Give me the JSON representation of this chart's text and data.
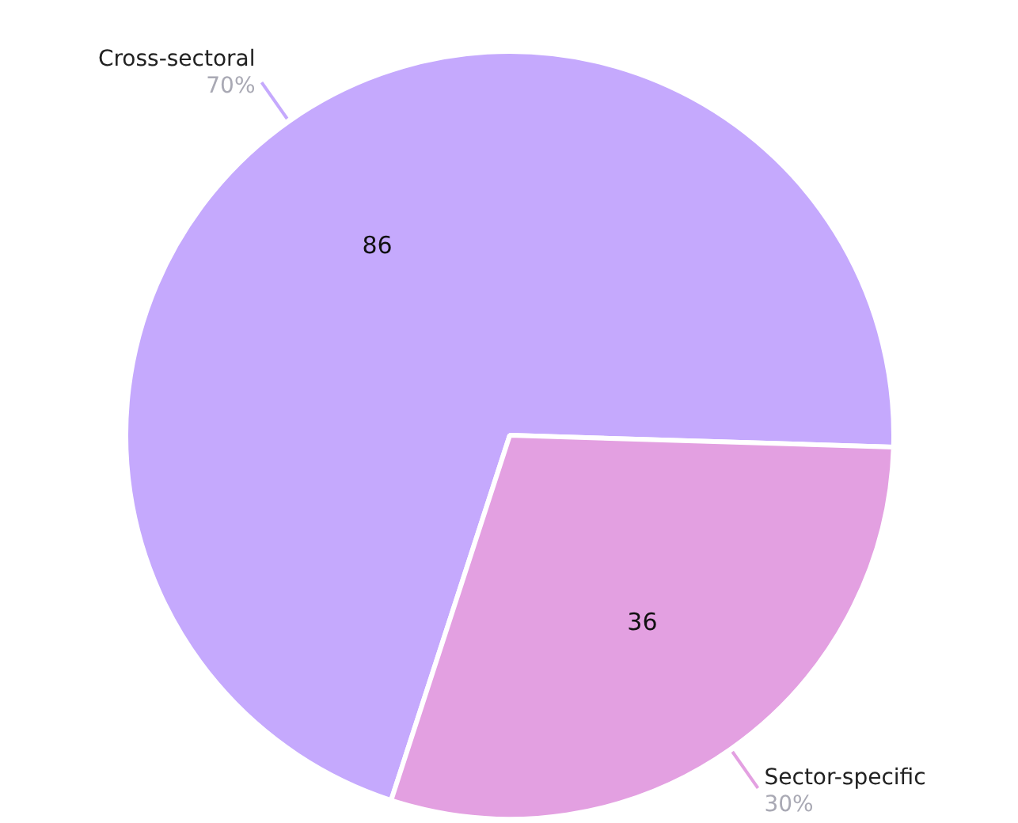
{
  "chart_data": {
    "type": "pie",
    "categories": [
      "Cross-sectoral",
      "Sector-specific"
    ],
    "values": [
      86,
      36
    ],
    "colors": [
      "#c5a9fd",
      "#e3a0e1"
    ],
    "data_labels": true,
    "annotations": [
      "70%",
      "30%"
    ],
    "legend": false
  }
}
